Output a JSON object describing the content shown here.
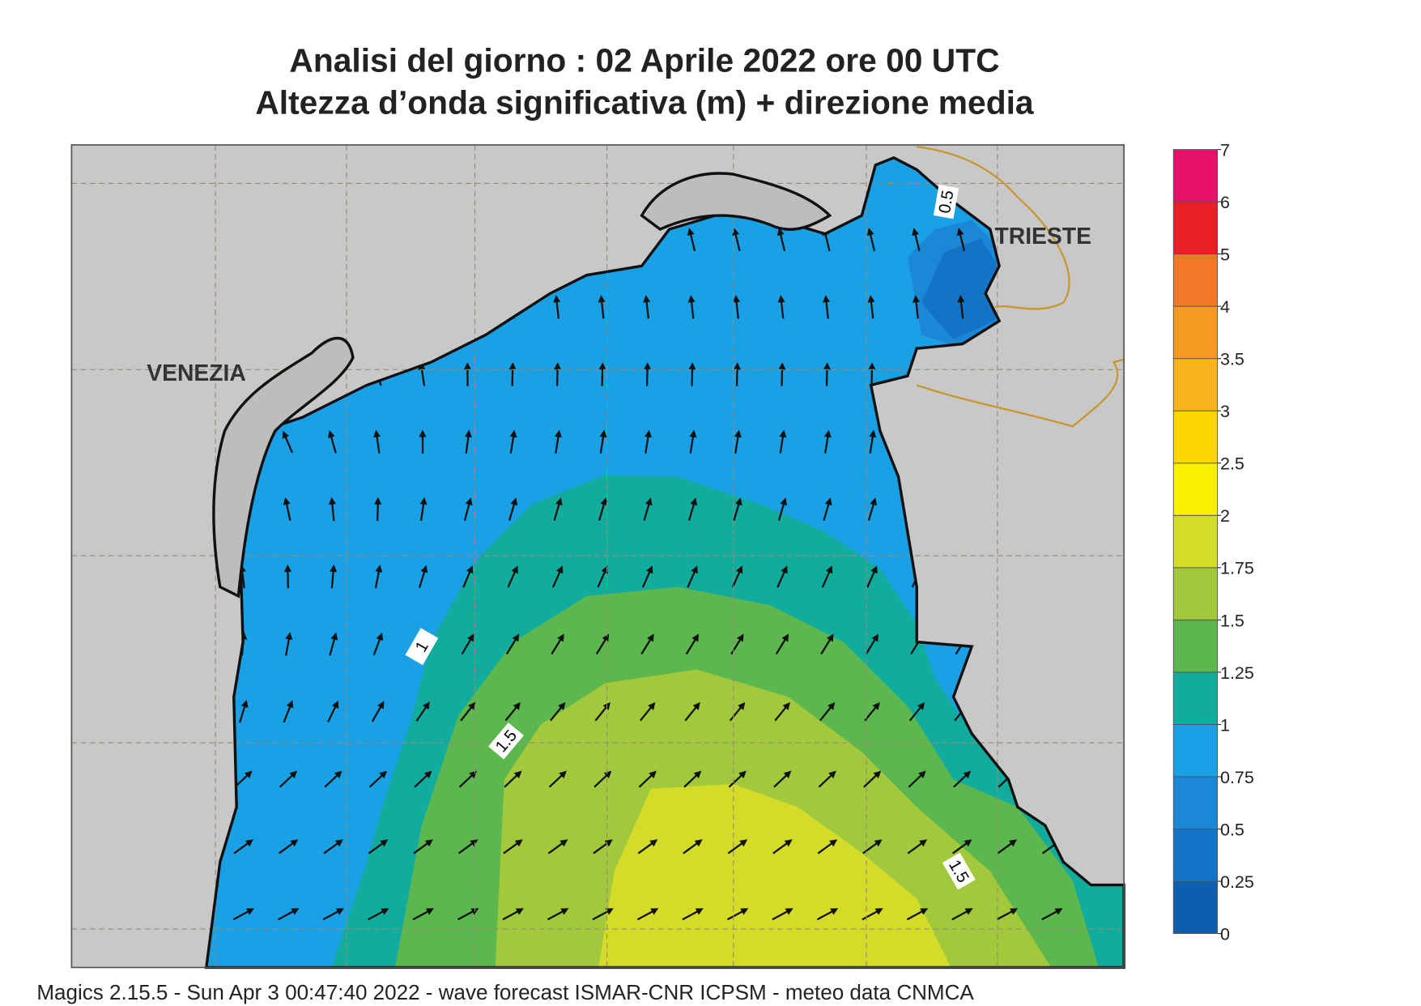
{
  "header": {
    "title": "Analisi del giorno :  02   Aprile  2022   ore 00 UTC",
    "subtitle": "Altezza d’onda significativa (m) + direzione media"
  },
  "map": {
    "places": [
      "VENEZIA",
      "TRIESTE"
    ],
    "contour_labels": [
      "0.5",
      "1",
      "1.5",
      "1.5"
    ]
  },
  "colorbar": {
    "levels": [
      0,
      0.25,
      0.5,
      0.75,
      1,
      1.25,
      1.5,
      1.75,
      2,
      2.5,
      3,
      3.5,
      4,
      5,
      6,
      7
    ],
    "colors": [
      "#0b5fae",
      "#1373c4",
      "#1a88d4",
      "#1aa0e4",
      "#12ac9e",
      "#5cb84e",
      "#a2c83c",
      "#d4dc2a",
      "#f8f000",
      "#fcd400",
      "#f8b41c",
      "#f49a1e",
      "#f07826",
      "#e82026",
      "#e8106a"
    ]
  },
  "footer": "Magics 2.15.5 - Sun Apr  3 00:47:40 2022 - wave forecast  ISMAR-CNR  ICPSM - meteo data   CNMCA"
}
